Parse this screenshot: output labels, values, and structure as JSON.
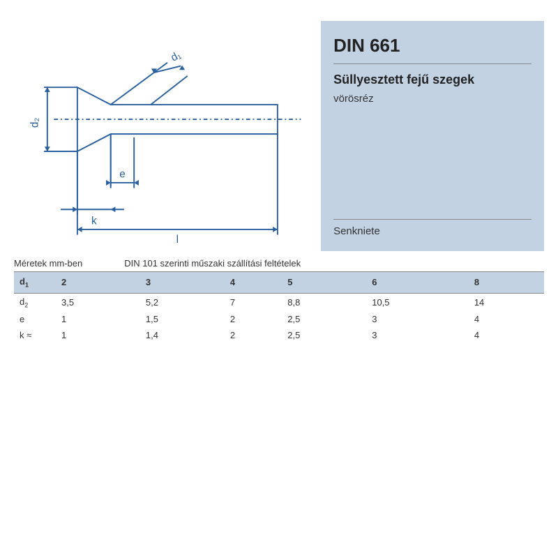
{
  "info": {
    "standard": "DIN 661",
    "title": "Süllyesztett fejű szegek",
    "material": "vörösréz",
    "alt": "Senkniete"
  },
  "notes": {
    "units": "Méretek mm-ben",
    "spec": "DIN 101 szerinti műszaki szállítási feltételek"
  },
  "diagram": {
    "stroke": "#2a5fa0",
    "stroke_width": 2,
    "dash": "6 4 2 4",
    "labels": {
      "d1": "d₁",
      "d2": "d₂",
      "e": "e",
      "k": "k",
      "l": "l"
    }
  },
  "table": {
    "header_label": "d₁",
    "header_bg": "#c3d2e3",
    "columns": [
      "2",
      "3",
      "4",
      "5",
      "6",
      "8"
    ],
    "rows": [
      {
        "label": "d₂",
        "values": [
          "3,5",
          "5,2",
          "7",
          "8,8",
          "10,5",
          "14"
        ]
      },
      {
        "label": "e",
        "values": [
          "1",
          "1,5",
          "2",
          "2,5",
          "3",
          "4"
        ]
      },
      {
        "label": "k ≈",
        "values": [
          "1",
          "1,4",
          "2",
          "2,5",
          "3",
          "4"
        ]
      }
    ]
  }
}
